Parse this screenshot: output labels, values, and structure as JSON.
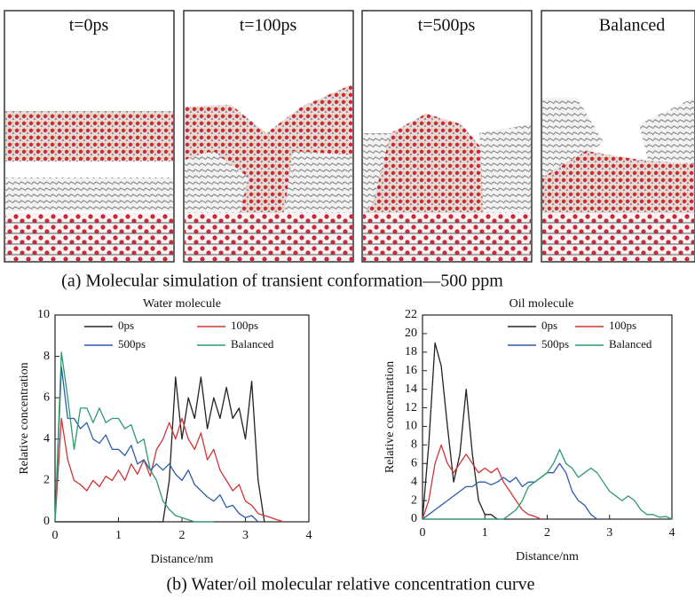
{
  "snapshots": {
    "labels": [
      "t=0ps",
      "t=100ps",
      "t=500ps",
      "Balanced"
    ],
    "caption": "(a) Molecular simulation of transient conformation—500 ppm"
  },
  "caption_b": "(b) Water/oil molecular relative concentration curve",
  "chart_data": [
    {
      "type": "line",
      "title": "Water molecule",
      "x_label": "Distance/nm",
      "y_label": "Relative concentration",
      "x": [
        0,
        0.1,
        0.2,
        0.3,
        0.4,
        0.5,
        0.6,
        0.7,
        0.8,
        0.9,
        1,
        1.1,
        1.2,
        1.3,
        1.4,
        1.5,
        1.6,
        1.7,
        1.8,
        1.9,
        2,
        2.1,
        2.2,
        2.3,
        2.4,
        2.5,
        2.6,
        2.7,
        2.8,
        2.9,
        3,
        3.1,
        3.2,
        3.3,
        3.4,
        3.5,
        3.6,
        3.7,
        3.8,
        3.9,
        4
      ],
      "xlim": [
        0,
        4
      ],
      "xticks": [
        0,
        1,
        2,
        3,
        4
      ],
      "ylim": [
        0,
        10
      ],
      "yticks": [
        0,
        2,
        4,
        6,
        8,
        10
      ],
      "series": [
        {
          "name": "0ps",
          "color": "#222222",
          "values": [
            0,
            0,
            0,
            0,
            0,
            0,
            0,
            0,
            0,
            0,
            0,
            0,
            0,
            0,
            0,
            0,
            0,
            0,
            2,
            7,
            4,
            6,
            5,
            7,
            4.5,
            6,
            5,
            6.5,
            5,
            5.5,
            4,
            6.8,
            2,
            0,
            null,
            null,
            null,
            null,
            null,
            null,
            null
          ]
        },
        {
          "name": "100ps",
          "color": "#d03535",
          "values": [
            0,
            5,
            3,
            2,
            1.8,
            1.5,
            2,
            1.7,
            2.2,
            2,
            2.5,
            2,
            2.8,
            2.3,
            3,
            2.2,
            3.5,
            4,
            4.8,
            4,
            5,
            4,
            3.5,
            4.3,
            3,
            3.5,
            2.5,
            2,
            1.5,
            1.8,
            1,
            0.8,
            0.4,
            0.3,
            0.2,
            0.1,
            0,
            null,
            null,
            null,
            null
          ]
        },
        {
          "name": "500ps",
          "color": "#2d5ca8",
          "values": [
            0,
            7.5,
            5,
            5,
            4.5,
            4.8,
            4,
            3.8,
            4.2,
            3.5,
            3.5,
            3.2,
            3.7,
            2.8,
            3,
            2.5,
            2.8,
            2.5,
            2.8,
            2.3,
            2,
            2.5,
            1.8,
            1.5,
            1.2,
            1,
            1.3,
            0.7,
            0.8,
            0.4,
            0.2,
            0.3,
            0,
            null,
            null,
            null,
            null,
            null,
            null,
            null,
            null
          ]
        },
        {
          "name": "Balanced",
          "color": "#2e9a6c",
          "values": [
            0,
            8.2,
            6,
            3.5,
            5.5,
            5.5,
            4.8,
            5.5,
            4.8,
            5,
            5,
            4.5,
            4.7,
            3.8,
            4,
            2.5,
            2,
            1,
            0.6,
            0.3,
            0.2,
            0.1,
            0,
            0,
            0,
            0,
            null,
            null,
            null,
            null,
            null,
            null,
            null,
            null,
            null,
            null,
            null,
            null,
            null,
            null,
            null
          ]
        }
      ]
    },
    {
      "type": "line",
      "title": "Oil molecule",
      "x_label": "Distance/nm",
      "y_label": "Relative concentration",
      "x": [
        0,
        0.1,
        0.2,
        0.3,
        0.4,
        0.5,
        0.6,
        0.7,
        0.8,
        0.9,
        1,
        1.1,
        1.2,
        1.3,
        1.4,
        1.5,
        1.6,
        1.7,
        1.8,
        1.9,
        2,
        2.1,
        2.2,
        2.3,
        2.4,
        2.5,
        2.6,
        2.7,
        2.8,
        2.9,
        3,
        3.1,
        3.2,
        3.3,
        3.4,
        3.5,
        3.6,
        3.7,
        3.8,
        3.9,
        4
      ],
      "xlim": [
        0,
        4
      ],
      "xticks": [
        0,
        1,
        2,
        3,
        4
      ],
      "ylim": [
        0,
        22
      ],
      "yticks": [
        0,
        2,
        4,
        6,
        8,
        10,
        12,
        14,
        16,
        18,
        20,
        22
      ],
      "series": [
        {
          "name": "0ps",
          "color": "#222222",
          "values": [
            0,
            8,
            19,
            16.5,
            10,
            4,
            7,
            14,
            7,
            2,
            0.5,
            0.5,
            0,
            null,
            null,
            null,
            null,
            null,
            null,
            null,
            null,
            null,
            null,
            null,
            null,
            null,
            null,
            null,
            null,
            null,
            null,
            null,
            null,
            null,
            null,
            null,
            null,
            null,
            null,
            null,
            null
          ]
        },
        {
          "name": "100ps",
          "color": "#d03535",
          "values": [
            0,
            2,
            6,
            8,
            6,
            5,
            6,
            7,
            6,
            5,
            5.5,
            5,
            5.5,
            4,
            3,
            2,
            1,
            0.5,
            0.3,
            0,
            null,
            null,
            null,
            null,
            null,
            null,
            null,
            null,
            null,
            null,
            null,
            null,
            null,
            null,
            null,
            null,
            null,
            null,
            null,
            null,
            null
          ]
        },
        {
          "name": "500ps",
          "color": "#2d5ca8",
          "values": [
            0,
            0.5,
            1,
            1.5,
            2,
            2.5,
            3,
            3.5,
            3.5,
            4,
            4,
            3.7,
            4,
            4.5,
            4,
            4.5,
            3.5,
            4,
            4,
            4.5,
            5,
            5,
            6,
            5,
            3,
            2,
            1.5,
            0.5,
            0,
            null,
            null,
            null,
            null,
            null,
            null,
            null,
            null,
            null,
            null,
            null,
            null
          ]
        },
        {
          "name": "Balanced",
          "color": "#2e9a6c",
          "values": [
            0,
            0,
            0,
            0,
            0,
            0,
            0,
            0,
            0,
            0,
            0,
            0,
            0,
            0,
            0.5,
            1,
            2,
            3.5,
            4,
            4.5,
            5,
            6,
            7.5,
            6,
            5.5,
            4.5,
            5,
            5.5,
            5,
            4,
            3,
            2.5,
            2,
            2.5,
            2,
            1,
            0.5,
            0.5,
            0.2,
            0.3,
            0
          ]
        }
      ]
    }
  ]
}
